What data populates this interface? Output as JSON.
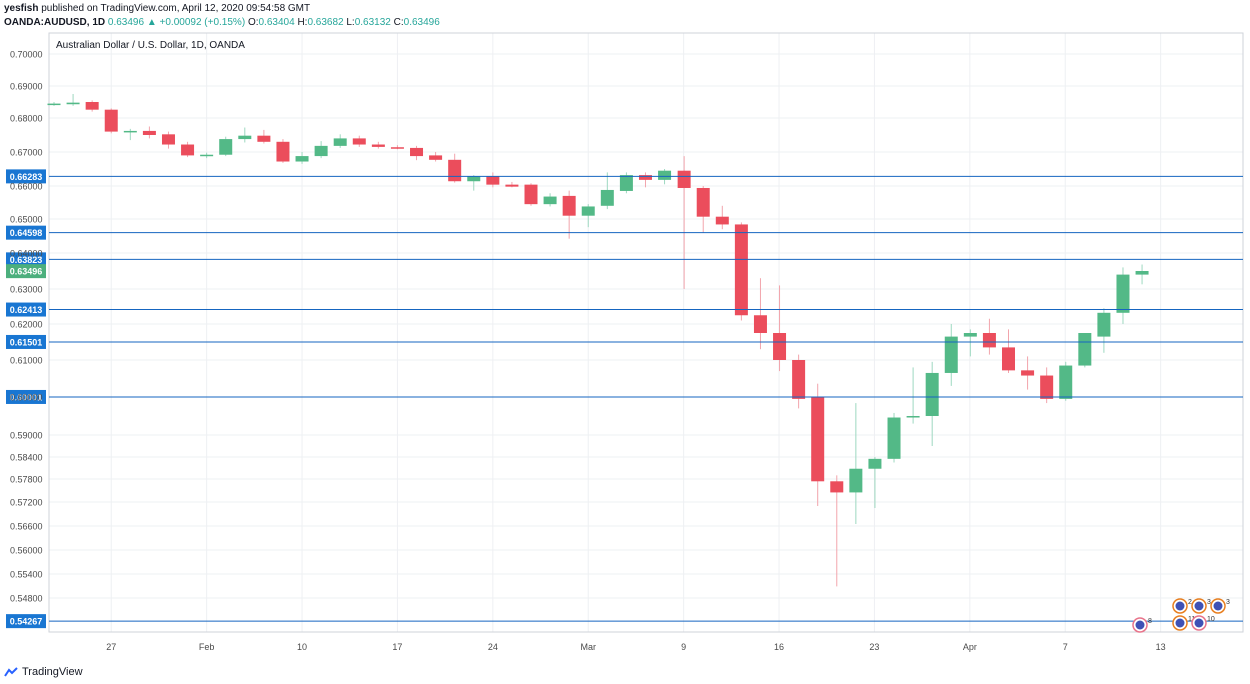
{
  "header": {
    "author": "yesfish",
    "published": " published on TradingView.com, April 12, 2020 09:54:58 GMT",
    "symbol": "OANDA:AUDUSD, 1D",
    "last": "0.63496",
    "change": "+0.00092 (+0.15%)",
    "o_label": "O:",
    "o": "0.63404",
    "h_label": "H:",
    "h": "0.63682",
    "l_label": "L:",
    "l": "0.63132",
    "c_label": "C:",
    "c": "0.63496"
  },
  "footer": {
    "brand": "TradingView"
  },
  "colors": {
    "up": "#26a69a",
    "up_body": "#53b987",
    "down": "#eb4d5c",
    "level_line": "#1565c0",
    "level_badge": "#1976d2",
    "last_badge": "#4caf7d",
    "grid": "#eef0f3",
    "axis_text": "#4a4a4a"
  },
  "chart_data": {
    "type": "candlestick",
    "title": "Australian Dollar / U.S. Dollar, 1D, OANDA",
    "y_ticks": [
      "0.70000",
      "0.69000",
      "0.68000",
      "0.67000",
      "0.66000",
      "0.65000",
      "0.64000",
      "0.63000",
      "0.62000",
      "0.61000",
      "0.60000",
      "0.59000",
      "0.58400",
      "0.57800",
      "0.57200",
      "0.56600",
      "0.56000",
      "0.55400",
      "0.54800"
    ],
    "x_ticks": [
      "27",
      "Feb",
      "10",
      "17",
      "24",
      "Mar",
      "9",
      "16",
      "23",
      "Apr",
      "7",
      "13"
    ],
    "levels": [
      "0.66283",
      "0.64598",
      "0.63823",
      "0.62413",
      "0.61501",
      "0.60001",
      "0.54267"
    ],
    "last_price": "0.63496",
    "event_badges": [
      "2",
      "3",
      "3",
      "11",
      "10",
      "8"
    ],
    "candles": [
      {
        "o": 0.6845,
        "h": 0.685,
        "l": 0.6838,
        "c": 0.6845
      },
      {
        "o": 0.6843,
        "h": 0.6875,
        "l": 0.6838,
        "c": 0.6848
      },
      {
        "o": 0.685,
        "h": 0.6855,
        "l": 0.682,
        "c": 0.6826
      },
      {
        "o": 0.6826,
        "h": 0.683,
        "l": 0.6755,
        "c": 0.676
      },
      {
        "o": 0.676,
        "h": 0.6768,
        "l": 0.6735,
        "c": 0.6762
      },
      {
        "o": 0.6762,
        "h": 0.6775,
        "l": 0.674,
        "c": 0.675
      },
      {
        "o": 0.6752,
        "h": 0.676,
        "l": 0.671,
        "c": 0.6722
      },
      {
        "o": 0.6722,
        "h": 0.673,
        "l": 0.6685,
        "c": 0.669
      },
      {
        "o": 0.669,
        "h": 0.6698,
        "l": 0.6682,
        "c": 0.6692
      },
      {
        "o": 0.6692,
        "h": 0.6745,
        "l": 0.6688,
        "c": 0.6738
      },
      {
        "o": 0.6738,
        "h": 0.6772,
        "l": 0.6728,
        "c": 0.6748
      },
      {
        "o": 0.6748,
        "h": 0.6765,
        "l": 0.6725,
        "c": 0.673
      },
      {
        "o": 0.673,
        "h": 0.6738,
        "l": 0.6668,
        "c": 0.6672
      },
      {
        "o": 0.6672,
        "h": 0.67,
        "l": 0.6665,
        "c": 0.6688
      },
      {
        "o": 0.6688,
        "h": 0.6732,
        "l": 0.6682,
        "c": 0.6718
      },
      {
        "o": 0.6718,
        "h": 0.6752,
        "l": 0.6712,
        "c": 0.674
      },
      {
        "o": 0.674,
        "h": 0.6748,
        "l": 0.6715,
        "c": 0.6722
      },
      {
        "o": 0.6722,
        "h": 0.673,
        "l": 0.671,
        "c": 0.6715
      },
      {
        "o": 0.6714,
        "h": 0.672,
        "l": 0.6708,
        "c": 0.6712
      },
      {
        "o": 0.6712,
        "h": 0.6718,
        "l": 0.6676,
        "c": 0.6688
      },
      {
        "o": 0.669,
        "h": 0.67,
        "l": 0.6672,
        "c": 0.6677
      },
      {
        "o": 0.6677,
        "h": 0.6695,
        "l": 0.661,
        "c": 0.6614
      },
      {
        "o": 0.6614,
        "h": 0.6632,
        "l": 0.6586,
        "c": 0.6628
      },
      {
        "o": 0.6628,
        "h": 0.664,
        "l": 0.6596,
        "c": 0.6604
      },
      {
        "o": 0.6604,
        "h": 0.6612,
        "l": 0.6596,
        "c": 0.6598
      },
      {
        "o": 0.6604,
        "h": 0.6608,
        "l": 0.654,
        "c": 0.6545
      },
      {
        "o": 0.6545,
        "h": 0.6578,
        "l": 0.6538,
        "c": 0.6568
      },
      {
        "o": 0.657,
        "h": 0.6586,
        "l": 0.6442,
        "c": 0.651
      },
      {
        "o": 0.651,
        "h": 0.6545,
        "l": 0.6476,
        "c": 0.6538
      },
      {
        "o": 0.654,
        "h": 0.664,
        "l": 0.653,
        "c": 0.6588
      },
      {
        "o": 0.6585,
        "h": 0.664,
        "l": 0.6578,
        "c": 0.6632
      },
      {
        "o": 0.6632,
        "h": 0.664,
        "l": 0.6596,
        "c": 0.6618
      },
      {
        "o": 0.6618,
        "h": 0.665,
        "l": 0.6605,
        "c": 0.6645
      },
      {
        "o": 0.6645,
        "h": 0.6688,
        "l": 0.63,
        "c": 0.6594
      },
      {
        "o": 0.6594,
        "h": 0.66,
        "l": 0.646,
        "c": 0.6507
      },
      {
        "o": 0.6507,
        "h": 0.654,
        "l": 0.647,
        "c": 0.6484
      },
      {
        "o": 0.6484,
        "h": 0.649,
        "l": 0.621,
        "c": 0.6225
      },
      {
        "o": 0.6225,
        "h": 0.633,
        "l": 0.613,
        "c": 0.6175
      },
      {
        "o": 0.6175,
        "h": 0.631,
        "l": 0.607,
        "c": 0.61
      },
      {
        "o": 0.61,
        "h": 0.6115,
        "l": 0.597,
        "c": 0.5995
      },
      {
        "o": 0.6,
        "h": 0.6036,
        "l": 0.571,
        "c": 0.5774
      },
      {
        "o": 0.5774,
        "h": 0.579,
        "l": 0.5509,
        "c": 0.5745
      },
      {
        "o": 0.5745,
        "h": 0.5984,
        "l": 0.5665,
        "c": 0.5808
      },
      {
        "o": 0.5808,
        "h": 0.584,
        "l": 0.5705,
        "c": 0.5835
      },
      {
        "o": 0.5835,
        "h": 0.5958,
        "l": 0.5825,
        "c": 0.5946
      },
      {
        "o": 0.5946,
        "h": 0.608,
        "l": 0.593,
        "c": 0.595
      },
      {
        "o": 0.595,
        "h": 0.6095,
        "l": 0.587,
        "c": 0.6065
      },
      {
        "o": 0.6065,
        "h": 0.62,
        "l": 0.603,
        "c": 0.6165
      },
      {
        "o": 0.6165,
        "h": 0.6185,
        "l": 0.611,
        "c": 0.6175
      },
      {
        "o": 0.6175,
        "h": 0.6215,
        "l": 0.6115,
        "c": 0.6135
      },
      {
        "o": 0.6135,
        "h": 0.6185,
        "l": 0.6065,
        "c": 0.6072
      },
      {
        "o": 0.6072,
        "h": 0.611,
        "l": 0.602,
        "c": 0.6058
      },
      {
        "o": 0.6058,
        "h": 0.608,
        "l": 0.5984,
        "c": 0.5995
      },
      {
        "o": 0.5995,
        "h": 0.6095,
        "l": 0.599,
        "c": 0.6085
      },
      {
        "o": 0.6085,
        "h": 0.6175,
        "l": 0.608,
        "c": 0.6175
      },
      {
        "o": 0.6165,
        "h": 0.6245,
        "l": 0.612,
        "c": 0.6232
      },
      {
        "o": 0.6232,
        "h": 0.636,
        "l": 0.62,
        "c": 0.634
      },
      {
        "o": 0.634,
        "h": 0.6368,
        "l": 0.6313,
        "c": 0.635
      }
    ]
  }
}
